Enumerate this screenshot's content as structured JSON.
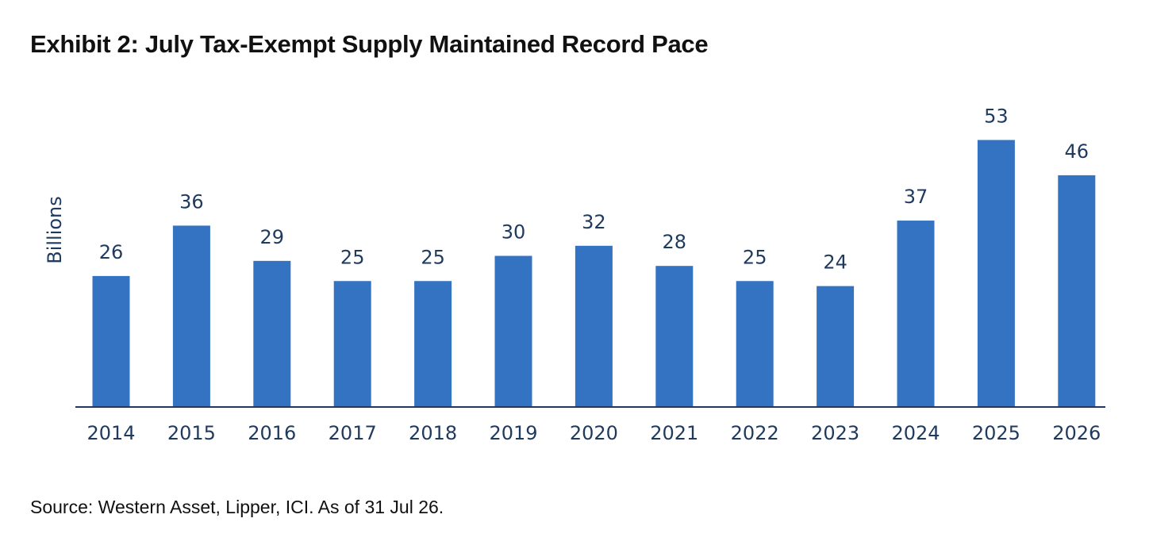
{
  "title": "Exhibit 2: July Tax-Exempt Supply Maintained Record Pace",
  "source": "Source: Western Asset, Lipper, ICI. As of 31 Jul 26.",
  "colors": {
    "bar": "#3473c1",
    "text": "#1f3a5f",
    "axis": "#1f3a5f"
  },
  "chart_data": {
    "type": "bar",
    "title": "",
    "xlabel": "",
    "ylabel": "Billions",
    "ylim": [
      0,
      60
    ],
    "grid": false,
    "categories": [
      "2014",
      "2015",
      "2016",
      "2017",
      "2018",
      "2019",
      "2020",
      "2021",
      "2022",
      "2023",
      "2024",
      "2025",
      "2026"
    ],
    "values": [
      26,
      36,
      29,
      25,
      25,
      30,
      32,
      28,
      25,
      24,
      37,
      53,
      46
    ]
  }
}
